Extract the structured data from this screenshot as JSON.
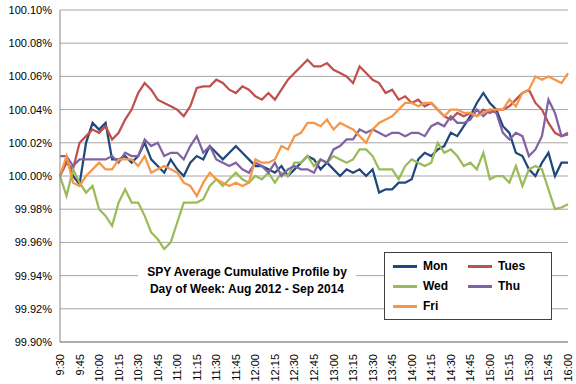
{
  "chart_data": {
    "type": "line",
    "title": "SPY Average Cumulative Profile by\nDay of Week: Aug 2012 - Sep 2014",
    "categories": [
      "9:30",
      null,
      null,
      "9:45",
      null,
      null,
      "10:00",
      null,
      null,
      "10:15",
      null,
      null,
      "10:30",
      null,
      null,
      "10:45",
      null,
      null,
      "11:00",
      null,
      null,
      "11:15",
      null,
      null,
      "11:30",
      null,
      null,
      "11:45",
      null,
      null,
      "12:00",
      null,
      null,
      "12:15",
      null,
      null,
      "12:30",
      null,
      null,
      "12:45",
      null,
      null,
      "13:00",
      null,
      null,
      "13:15",
      null,
      null,
      "13:30",
      null,
      null,
      "13:45",
      null,
      null,
      "14:00",
      null,
      null,
      "14:15",
      null,
      null,
      "14:30",
      null,
      null,
      "14:45",
      null,
      null,
      "15:00",
      null,
      null,
      "15:15",
      null,
      null,
      "15:30",
      null,
      null,
      "15:45",
      null,
      null,
      "16:00"
    ],
    "series": [
      {
        "name": "Mon",
        "color": "#1f497d",
        "values": [
          100.0,
          100.01,
          100.0,
          99.995,
          100.02,
          100.032,
          100.028,
          100.032,
          100.01,
          100.01,
          100.012,
          100.008,
          100.012,
          100.02,
          100.01,
          100.006,
          100.002,
          100.01,
          100.004,
          100.0,
          100.008,
          100.012,
          100.01,
          100.018,
          100.014,
          100.01,
          100.014,
          100.018,
          100.014,
          100.01,
          100.006,
          100.006,
          100.004,
          100.002,
          100.006,
          100.0,
          100.004,
          100.008,
          100.012,
          100.01,
          100.004,
          100.008,
          100.004,
          100.0,
          100.004,
          100.002,
          100.004,
          100.0,
          100.004,
          99.99,
          99.992,
          99.992,
          99.996,
          99.996,
          99.998,
          100.01,
          100.014,
          100.012,
          100.016,
          100.018,
          100.026,
          100.024,
          100.03,
          100.036,
          100.044,
          100.05,
          100.044,
          100.04,
          100.03,
          100.026,
          100.014,
          100.012,
          100.004,
          100.0,
          100.008,
          100.014,
          100.0,
          100.008,
          100.008
        ]
      },
      {
        "name": "Tues",
        "color": "#c0504d",
        "values": [
          100.0,
          100.008,
          100.004,
          100.02,
          100.024,
          100.028,
          100.026,
          100.03,
          100.022,
          100.026,
          100.034,
          100.04,
          100.05,
          100.056,
          100.052,
          100.046,
          100.044,
          100.042,
          100.04,
          100.036,
          100.042,
          100.053,
          100.054,
          100.054,
          100.058,
          100.056,
          100.052,
          100.05,
          100.054,
          100.052,
          100.048,
          100.046,
          100.05,
          100.046,
          100.052,
          100.058,
          100.062,
          100.066,
          100.07,
          100.066,
          100.066,
          100.068,
          100.064,
          100.062,
          100.06,
          100.056,
          100.066,
          100.062,
          100.058,
          100.056,
          100.05,
          100.052,
          100.046,
          100.048,
          100.044,
          100.046,
          100.042,
          100.044,
          100.04,
          100.036,
          100.034,
          100.038,
          100.036,
          100.038,
          100.036,
          100.04,
          100.038,
          100.04,
          100.04,
          100.042,
          100.046,
          100.05,
          100.052,
          100.044,
          100.04,
          100.032,
          100.026,
          100.024,
          100.026
        ]
      },
      {
        "name": "Wed",
        "color": "#9bbb59",
        "values": [
          100.0,
          99.988,
          100.004,
          99.996,
          99.99,
          99.994,
          99.98,
          99.976,
          99.97,
          99.984,
          99.992,
          99.984,
          99.984,
          99.976,
          99.966,
          99.962,
          99.956,
          99.96,
          99.972,
          99.984,
          99.984,
          99.984,
          99.986,
          99.994,
          99.998,
          99.994,
          99.998,
          100.002,
          99.998,
          99.996,
          100.0,
          99.998,
          100.002,
          99.996,
          100.002,
          100.0,
          100.008,
          100.008,
          100.012,
          100.006,
          100.01,
          100.008,
          100.012,
          100.01,
          100.008,
          100.01,
          100.016,
          100.016,
          100.012,
          100.004,
          100.004,
          100.004,
          99.998,
          100.006,
          100.01,
          100.008,
          100.006,
          100.008,
          100.02,
          100.014,
          100.016,
          100.012,
          100.006,
          100.008,
          100.004,
          100.014,
          99.998,
          100.0,
          100.0,
          99.996,
          100.006,
          99.994,
          100.004,
          100.006,
          100.004,
          99.992,
          99.98,
          99.981,
          99.983
        ]
      },
      {
        "name": "Thu",
        "color": "#8064a2",
        "values": [
          100.012,
          100.012,
          100.006,
          100.01,
          100.01,
          100.01,
          100.01,
          100.01,
          100.012,
          100.008,
          100.014,
          100.012,
          100.012,
          100.022,
          100.018,
          100.02,
          100.012,
          100.014,
          100.014,
          100.01,
          100.018,
          100.024,
          100.014,
          100.018,
          100.01,
          100.008,
          100.006,
          100.008,
          100.004,
          100.002,
          100.008,
          100.006,
          100.002,
          100.008,
          100.0,
          100.004,
          100.006,
          100.004,
          100.004,
          100.002,
          100.01,
          100.008,
          100.016,
          100.018,
          100.022,
          100.022,
          100.028,
          100.026,
          100.028,
          100.026,
          100.024,
          100.026,
          100.026,
          100.024,
          100.026,
          100.026,
          100.024,
          100.03,
          100.032,
          100.03,
          100.036,
          100.032,
          100.032,
          100.034,
          100.04,
          100.036,
          100.04,
          100.038,
          100.026,
          100.022,
          100.026,
          100.024,
          100.012,
          100.016,
          100.024,
          100.046,
          100.038,
          100.024,
          100.025
        ]
      },
      {
        "name": "Fri",
        "color": "#f79646",
        "values": [
          100.0,
          100.012,
          99.996,
          99.994,
          100.0,
          100.004,
          100.008,
          100.004,
          100.004,
          100.01,
          100.01,
          100.01,
          100.006,
          100.012,
          100.002,
          100.004,
          100.006,
          100.004,
          100.002,
          99.996,
          99.994,
          99.988,
          99.996,
          100.002,
          99.998,
          99.996,
          99.994,
          99.996,
          99.994,
          99.996,
          100.01,
          100.008,
          100.008,
          100.01,
          100.018,
          100.016,
          100.024,
          100.026,
          100.032,
          100.032,
          100.03,
          100.034,
          100.028,
          100.032,
          100.03,
          100.028,
          100.024,
          100.02,
          100.028,
          100.032,
          100.034,
          100.036,
          100.04,
          100.044,
          100.044,
          100.042,
          100.044,
          100.044,
          100.04,
          100.036,
          100.04,
          100.04,
          100.038,
          100.038,
          100.036,
          100.038,
          100.04,
          100.04,
          100.04,
          100.046,
          100.042,
          100.05,
          100.052,
          100.06,
          100.058,
          100.06,
          100.058,
          100.056,
          100.062
        ]
      }
    ],
    "ylim": [
      99.9,
      100.1
    ],
    "yticks": [
      {
        "value": 99.9,
        "label": "99.90%"
      },
      {
        "value": 99.92,
        "label": "99.92%"
      },
      {
        "value": 99.94,
        "label": "99.94%"
      },
      {
        "value": 99.96,
        "label": "99.96%"
      },
      {
        "value": 99.98,
        "label": "99.98%"
      },
      {
        "value": 100,
        "label": "100.00%"
      },
      {
        "value": 100.02,
        "label": "100.02%"
      },
      {
        "value": 100.04,
        "label": "100.04%"
      },
      {
        "value": 100.06,
        "label": "100.06%"
      },
      {
        "value": 100.08,
        "label": "100.08%"
      },
      {
        "value": 100.1,
        "label": "100.10%"
      }
    ],
    "grid": true,
    "legend": "lower right"
  }
}
